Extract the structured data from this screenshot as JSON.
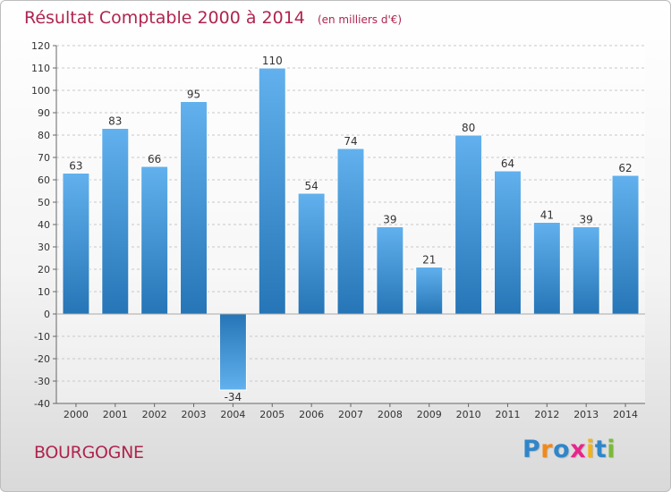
{
  "header": {
    "title": "Résultat Comptable 2000 à 2014",
    "subtitle": "(en milliers d'€)"
  },
  "footer": {
    "region": "BOURGOGNE",
    "logo": {
      "letters": [
        "P",
        "r",
        "o",
        "x",
        "i",
        "t",
        "i"
      ],
      "colors": [
        "#2f86c9",
        "#f08a1c",
        "#2f86c9",
        "#e8258a",
        "#f2b31a",
        "#2f86c9",
        "#7cba3a"
      ]
    }
  },
  "colors": {
    "title": "#b0244f",
    "bar_light": "#62b1ee",
    "bar_dark": "#2675b6",
    "label": "#333333"
  },
  "chart_data": {
    "type": "bar",
    "title": "Résultat Comptable 2000 à 2014",
    "ylabel": "(en milliers d'€)",
    "xlabel": "",
    "categories": [
      "2000",
      "2001",
      "2002",
      "2003",
      "2004",
      "2005",
      "2006",
      "2007",
      "2008",
      "2009",
      "2010",
      "2011",
      "2012",
      "2013",
      "2014"
    ],
    "values": [
      63,
      83,
      66,
      95,
      -34,
      110,
      54,
      74,
      39,
      21,
      80,
      64,
      41,
      39,
      62
    ],
    "ylim": [
      -40,
      120
    ],
    "yticks": [
      -40,
      -30,
      -20,
      -10,
      0,
      10,
      20,
      30,
      40,
      50,
      60,
      70,
      80,
      90,
      100,
      110,
      120
    ],
    "grid": true,
    "legend": false
  }
}
